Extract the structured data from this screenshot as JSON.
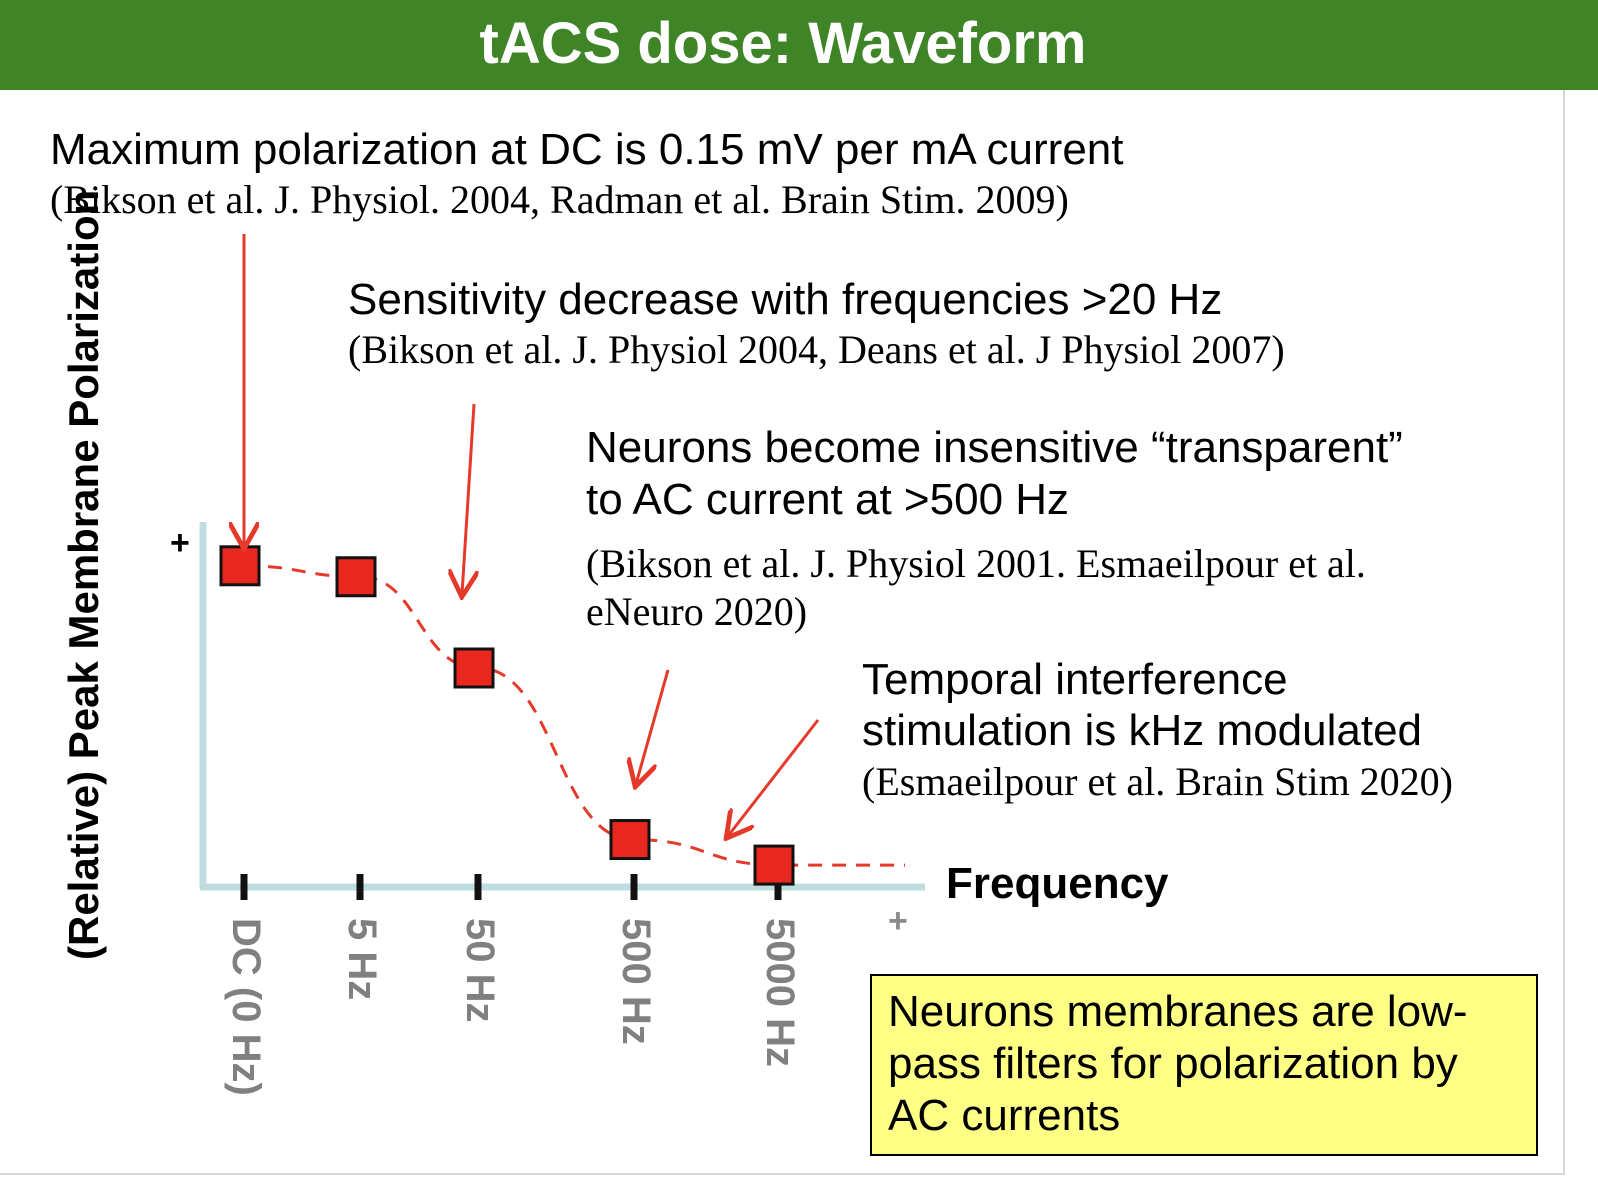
{
  "title": "tACS dose: Waveform",
  "notes": [
    {
      "main": "Maximum polarization at DC is 0.15 mV per mA current",
      "ref": "(Bikson et al. J. Physiol. 2004, Radman et al. Brain Stim. 2009)"
    },
    {
      "main": "Sensitivity decrease with frequencies >20 Hz",
      "ref": "(Bikson et al. J. Physiol 2004, Deans et al. J Physiol 2007)"
    },
    {
      "main_line1": "Neurons become insensitive “transparent”",
      "main_line2": "to AC current at >500 Hz",
      "ref_line1": "(Bikson et al. J. Physiol 2001. Esmaeilpour et al.",
      "ref_line2": "eNeuro 2020)"
    },
    {
      "main_line1": "Temporal interference",
      "main_line2": "stimulation is kHz modulated",
      "ref": "(Esmaeilpour et al. Brain Stim 2020)"
    }
  ],
  "callout": "Neurons membranes are low-pass filters for polarization by AC currents",
  "colors": {
    "title_bar": "#3f8527",
    "marker": "#e8281e",
    "arrow": "#e53a2a",
    "axis": "#bfdde0",
    "callout_bg": "#ffff86"
  },
  "chart_data": {
    "type": "scatter",
    "title": "",
    "xlabel": "Frequency",
    "ylabel": "(Relative) Peak Membrane Polarization",
    "y_axis_plus": "+",
    "x_axis_plus": "+",
    "categories": [
      "DC (0 Hz)",
      "5 Hz",
      "50 Hz",
      "500 Hz",
      "5000 Hz"
    ],
    "values": [
      0.88,
      0.85,
      0.6,
      0.13,
      0.06
    ],
    "ylim": [
      0,
      1
    ],
    "trend": "dashed",
    "grid": false
  }
}
